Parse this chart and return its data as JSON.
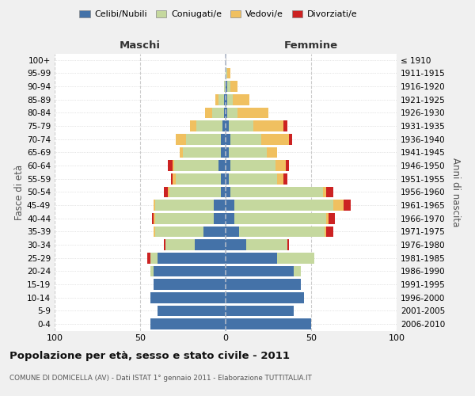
{
  "age_groups": [
    "100+",
    "95-99",
    "90-94",
    "85-89",
    "80-84",
    "75-79",
    "70-74",
    "65-69",
    "60-64",
    "55-59",
    "50-54",
    "45-49",
    "40-44",
    "35-39",
    "30-34",
    "25-29",
    "20-24",
    "15-19",
    "10-14",
    "5-9",
    "0-4"
  ],
  "birth_years": [
    "≤ 1910",
    "1911-1915",
    "1916-1920",
    "1921-1925",
    "1926-1930",
    "1931-1935",
    "1936-1940",
    "1941-1945",
    "1946-1950",
    "1951-1955",
    "1956-1960",
    "1961-1965",
    "1966-1970",
    "1971-1975",
    "1976-1980",
    "1981-1985",
    "1986-1990",
    "1991-1995",
    "1996-2000",
    "2001-2005",
    "2006-2010"
  ],
  "colors": {
    "celibi": "#4472a8",
    "coniugati": "#c5d89e",
    "vedovi": "#f0c060",
    "divorziati": "#cc2222"
  },
  "maschi": {
    "celibi": [
      0,
      0,
      0,
      1,
      1,
      2,
      3,
      3,
      4,
      3,
      3,
      7,
      7,
      13,
      18,
      40,
      42,
      42,
      44,
      40,
      44
    ],
    "coniugati": [
      0,
      0,
      1,
      3,
      7,
      15,
      20,
      22,
      26,
      26,
      30,
      34,
      34,
      28,
      17,
      4,
      2,
      0,
      0,
      0,
      0
    ],
    "vedovi": [
      0,
      0,
      0,
      2,
      4,
      4,
      6,
      2,
      1,
      2,
      1,
      1,
      1,
      1,
      0,
      0,
      0,
      0,
      0,
      0,
      0
    ],
    "divorziati": [
      0,
      0,
      0,
      0,
      0,
      0,
      0,
      0,
      3,
      1,
      2,
      0,
      1,
      0,
      1,
      2,
      0,
      0,
      0,
      0,
      0
    ]
  },
  "femmine": {
    "celibi": [
      0,
      0,
      1,
      1,
      1,
      2,
      3,
      2,
      3,
      2,
      3,
      5,
      5,
      8,
      12,
      30,
      40,
      44,
      46,
      40,
      50
    ],
    "coniugati": [
      0,
      1,
      2,
      3,
      6,
      14,
      18,
      22,
      26,
      28,
      54,
      58,
      54,
      50,
      24,
      22,
      4,
      0,
      0,
      0,
      0
    ],
    "vedovi": [
      0,
      2,
      4,
      10,
      18,
      18,
      16,
      6,
      6,
      4,
      2,
      6,
      1,
      1,
      0,
      0,
      0,
      0,
      0,
      0,
      0
    ],
    "divorziati": [
      0,
      0,
      0,
      0,
      0,
      2,
      2,
      0,
      2,
      2,
      4,
      4,
      4,
      4,
      1,
      0,
      0,
      0,
      0,
      0,
      0
    ]
  },
  "xlim": 100,
  "title": "Popolazione per età, sesso e stato civile - 2011",
  "subtitle": "COMUNE DI DOMICELLA (AV) - Dati ISTAT 1° gennaio 2011 - Elaborazione TUTTITALIA.IT",
  "xlabel_left": "Maschi",
  "xlabel_right": "Femmine",
  "ylabel_left": "Fasce di età",
  "ylabel_right": "Anni di nascita",
  "legend_labels": [
    "Celibi/Nubili",
    "Coniugati/e",
    "Vedovi/e",
    "Divorziati/e"
  ],
  "bg_color": "#f0f0f0",
  "plot_bg_color": "#ffffff",
  "grid_color": "#cccccc"
}
